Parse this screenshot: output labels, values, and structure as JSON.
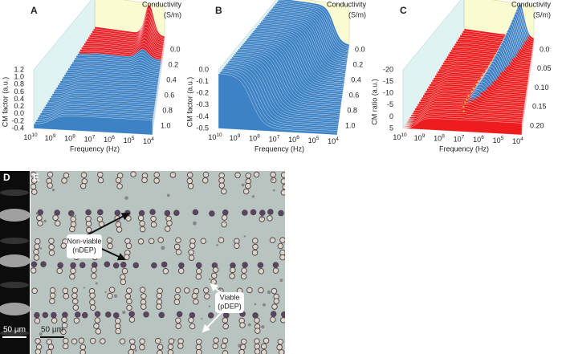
{
  "panels": [
    {
      "label": "A",
      "y_axis_label": "CM factor (a.u.)",
      "y_ticks": [
        "1.2",
        "1.0",
        "0.8",
        "0.6",
        "0.4",
        "0.2",
        "0.0",
        "-0.2",
        "-0.4"
      ],
      "x_axis_label": "Frequency (Hz)",
      "z_axis_label": "Conductivity",
      "z_axis_unit": "(S/m)",
      "z_ticks": [
        "0.0",
        "0.2",
        "0.4",
        "0.6",
        "0.8",
        "1.0"
      ]
    },
    {
      "label": "B",
      "y_axis_label": "CM factor (a.u.)",
      "y_ticks": [
        "0.0",
        "-0.1",
        "-0.2",
        "-0.3",
        "-0.4",
        "-0.5"
      ],
      "x_axis_label": "Frequency (Hz)",
      "z_axis_label": "Conductivity",
      "z_axis_unit": "(S/m)",
      "z_ticks": [
        "0.0",
        "0.2",
        "0.4",
        "0.6",
        "0.8",
        "1.0"
      ]
    },
    {
      "label": "C",
      "y_axis_label": "CM ratio (a.u.)",
      "y_ticks": [
        "-20",
        "-15",
        "-10",
        "-5",
        "0",
        "5"
      ],
      "x_axis_label": "Frequency (Hz)",
      "z_axis_label": "Conductivity",
      "z_axis_unit": "(S/m)",
      "z_ticks": [
        "0.0",
        "0.05",
        "0.10",
        "0.15",
        "0.20"
      ]
    }
  ],
  "frequency_ticks": {
    "base": "10",
    "exponents": [
      "10",
      "9",
      "8",
      "7",
      "6",
      "5",
      "4"
    ]
  },
  "images": [
    {
      "label": "D",
      "scale_bar": "50 µm"
    },
    {
      "label": "E",
      "scale_bar": "50 µm",
      "annotations": [
        {
          "lines": [
            "Non-viable",
            "(nDEP)"
          ]
        },
        {
          "lines": [
            "Viable",
            "(pDEP)"
          ]
        }
      ]
    }
  ]
}
